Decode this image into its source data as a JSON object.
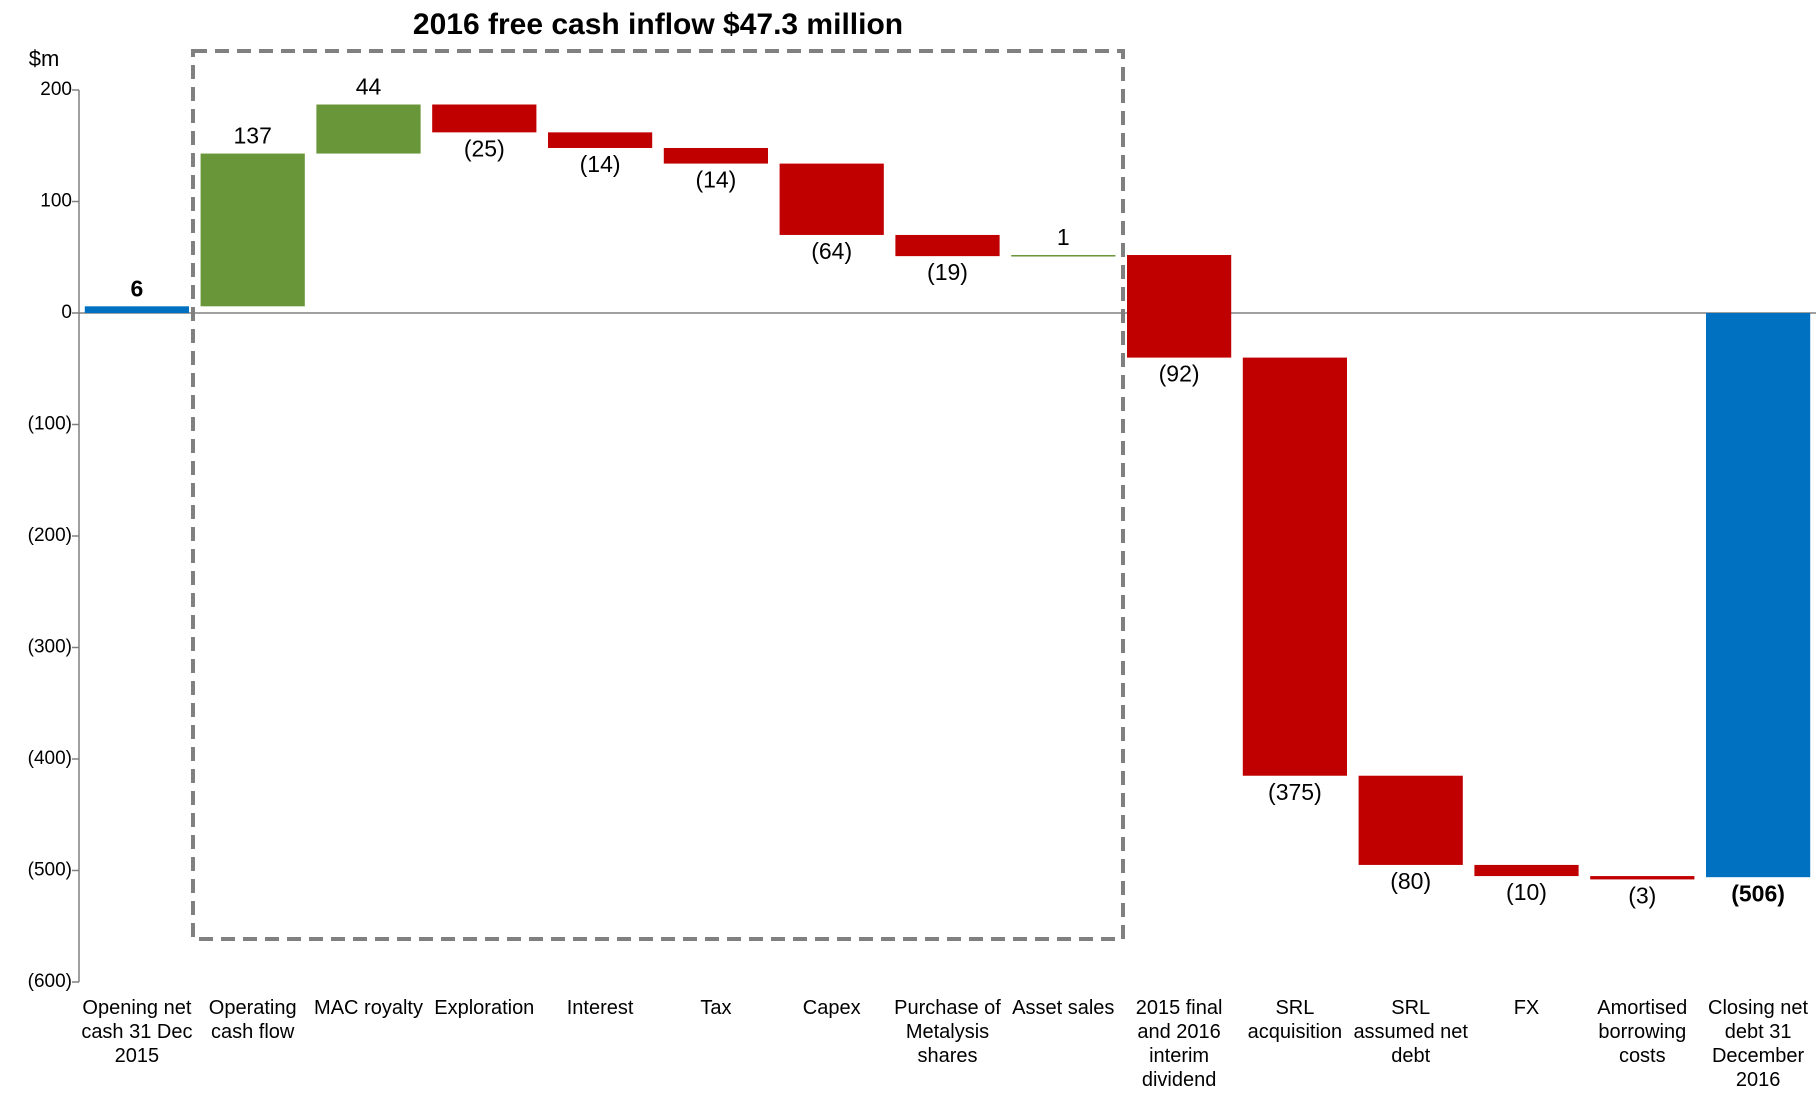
{
  "chart_data": {
    "type": "waterfall",
    "title": "2016 free cash inflow $47.3 million",
    "y_label": "$m",
    "categories": [
      "Opening net cash 31 Dec 2015",
      "Operating cash flow",
      "MAC royalty",
      "Exploration",
      "Interest",
      "Tax",
      "Capex",
      "Purchase of Metalysis shares",
      "Asset sales",
      "2015 final and 2016 interim dividend",
      "SRL acquisition",
      "SRL assumed net debt",
      "FX",
      "Amortised borrowing costs",
      "Closing net debt 31 December 2016"
    ],
    "values": [
      6,
      137,
      44,
      -25,
      -14,
      -14,
      -64,
      -19,
      1,
      -92,
      -375,
      -80,
      -10,
      -3,
      -506
    ],
    "value_labels": [
      "6",
      "137",
      "44",
      "(25)",
      "(14)",
      "(14)",
      "(64)",
      "(19)",
      "1",
      "(92)",
      "(375)",
      "(80)",
      "(10)",
      "(3)",
      "(506)"
    ],
    "colors": [
      "#0070c0",
      "#6a963a",
      "#6a963a",
      "#c00000",
      "#c00000",
      "#c00000",
      "#c00000",
      "#c00000",
      "#6a963a",
      "#c00000",
      "#c00000",
      "#c00000",
      "#c00000",
      "#c00000",
      "#0070c0"
    ],
    "ylim": [
      -600,
      200
    ],
    "yticks": [
      200,
      100,
      0,
      {
        "value": -100,
        "label": "(100)"
      },
      {
        "value": -200,
        "label": "(200)"
      },
      {
        "value": -300,
        "label": "(300)"
      },
      {
        "value": -400,
        "label": "(400)"
      },
      {
        "value": -500,
        "label": "(500)"
      },
      {
        "value": -600,
        "label": "(600)"
      }
    ],
    "grid": false
  }
}
